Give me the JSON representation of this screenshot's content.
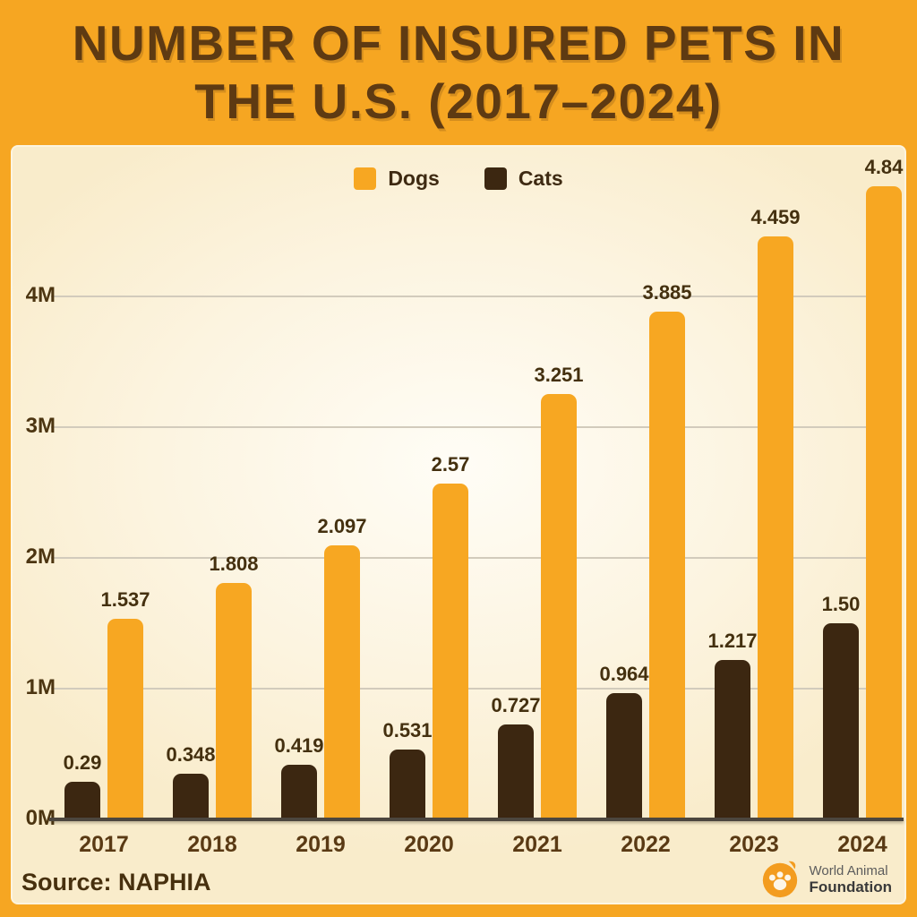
{
  "title": {
    "line1": "NUMBER OF INSURED PETS IN",
    "line2": "THE U.S. (2017–2024)"
  },
  "legend": [
    {
      "label": "Dogs",
      "color": "#F7A722"
    },
    {
      "label": "Cats",
      "color": "#3C2711"
    }
  ],
  "chart_data": {
    "type": "bar",
    "title": "Number of Insured Pets in the U.S. (2017–2024)",
    "categories": [
      "2017",
      "2018",
      "2019",
      "2020",
      "2021",
      "2022",
      "2023",
      "2024"
    ],
    "series": [
      {
        "name": "Dogs",
        "color": "#F7A722",
        "values": [
          1.537,
          1.808,
          2.097,
          2.57,
          3.251,
          3.885,
          4.459,
          4.84
        ],
        "labels": [
          "1.537",
          "1.808",
          "2.097",
          "2.57",
          "3.251",
          "3.885",
          "4.459",
          "4.84"
        ]
      },
      {
        "name": "Cats",
        "color": "#3C2711",
        "values": [
          0.29,
          0.348,
          0.419,
          0.531,
          0.727,
          0.964,
          1.217,
          1.5
        ],
        "labels": [
          "0.29",
          "0.348",
          "0.419",
          "0.531",
          "0.727",
          "0.964",
          "1.217",
          "1.50"
        ]
      }
    ],
    "bar_order": [
      "Cats",
      "Dogs"
    ],
    "xlabel": "",
    "ylabel": "",
    "yticks": [
      "0M",
      "1M",
      "2M",
      "3M",
      "4M"
    ],
    "ylim": [
      0,
      5
    ],
    "grid": true,
    "legend_position": "top-center",
    "source": "NAPHIA"
  },
  "source": {
    "label": "Source: NAPHIA"
  },
  "logo": {
    "line1": "World Animal",
    "line2": "Foundation"
  },
  "colors": {
    "background": "#F6A622",
    "card": "#FBF2DC",
    "title_text": "#5E3A12",
    "dogs_bar": "#F7A722",
    "cats_bar": "#3C2711",
    "gridline": "#D2CBBC",
    "axis_line": "#4C463E",
    "value_label": "#44300F"
  }
}
